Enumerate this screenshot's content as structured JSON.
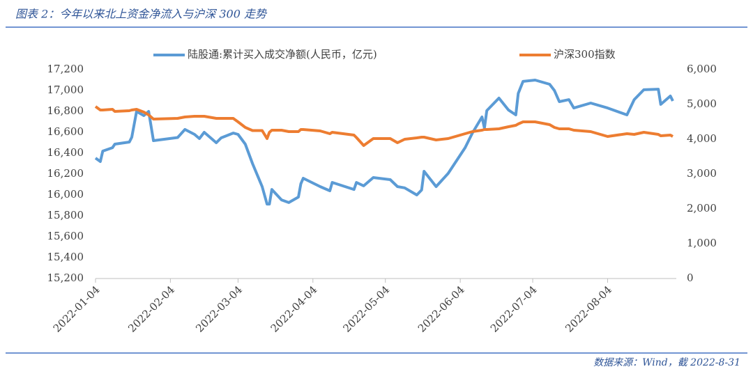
{
  "chart_data": {
    "type": "line",
    "title": "图表 2：今年以来北上资金净流入与沪深 300 走势",
    "source": "数据来源：Wind，截 2022-8-31",
    "legend": "top",
    "x": [
      "2022-01-04",
      "2022-01-06",
      "2022-01-07",
      "2022-01-11",
      "2022-01-12",
      "2022-01-18",
      "2022-01-19",
      "2022-01-21",
      "2022-01-24",
      "2022-01-26",
      "2022-01-28",
      "2022-02-07",
      "2022-02-10",
      "2022-02-14",
      "2022-02-16",
      "2022-02-18",
      "2022-02-23",
      "2022-02-25",
      "2022-03-02",
      "2022-03-04",
      "2022-03-07",
      "2022-03-10",
      "2022-03-14",
      "2022-03-16",
      "2022-03-17",
      "2022-03-18",
      "2022-03-22",
      "2022-03-25",
      "2022-03-29",
      "2022-03-30",
      "2022-03-31",
      "2022-04-07",
      "2022-04-11",
      "2022-04-12",
      "2022-04-21",
      "2022-04-22",
      "2022-04-25",
      "2022-04-29",
      "2022-05-06",
      "2022-05-09",
      "2022-05-12",
      "2022-05-17",
      "2022-05-19",
      "2022-05-20",
      "2022-05-25",
      "2022-05-30",
      "2022-06-06",
      "2022-06-09",
      "2022-06-13",
      "2022-06-14",
      "2022-06-15",
      "2022-06-20",
      "2022-06-24",
      "2022-06-27",
      "2022-06-28",
      "2022-06-30",
      "2022-07-05",
      "2022-07-11",
      "2022-07-13",
      "2022-07-15",
      "2022-07-19",
      "2022-07-21",
      "2022-07-28",
      "2022-08-04",
      "2022-08-12",
      "2022-08-15",
      "2022-08-19",
      "2022-08-25",
      "2022-08-26",
      "2022-08-30",
      "2022-08-31"
    ],
    "series": [
      {
        "name": "陆股通:累计买入成交净额(人民币，亿元)",
        "color": "#5b9bd5",
        "axis": "y",
        "values": [
          16353,
          16320,
          16420,
          16453,
          16487,
          16507,
          16553,
          16800,
          16760,
          16800,
          16520,
          16550,
          16627,
          16580,
          16540,
          16600,
          16500,
          16547,
          16593,
          16580,
          16487,
          16300,
          16080,
          15913,
          15913,
          16053,
          15953,
          15927,
          15980,
          16107,
          16160,
          16080,
          16040,
          16120,
          16053,
          16120,
          16087,
          16167,
          16147,
          16080,
          16068,
          16000,
          16047,
          16227,
          16080,
          16207,
          16453,
          16593,
          16747,
          16640,
          16807,
          16927,
          16813,
          16767,
          16973,
          17087,
          17100,
          17060,
          17000,
          16893,
          16913,
          16833,
          16880,
          16833,
          16767,
          16913,
          17007,
          17013,
          16867,
          16947,
          16900
        ]
      },
      {
        "name": "沪深300指数",
        "color": "#ed7d31",
        "axis": "y2",
        "values": [
          4940,
          4840,
          4840,
          4860,
          4800,
          4820,
          4840,
          4860,
          4780,
          4700,
          4580,
          4600,
          4640,
          4660,
          4660,
          4660,
          4600,
          4600,
          4600,
          4500,
          4340,
          4250,
          4250,
          4020,
          4200,
          4260,
          4260,
          4220,
          4220,
          4280,
          4280,
          4240,
          4160,
          4200,
          4120,
          4050,
          3820,
          4020,
          4020,
          3900,
          4000,
          4040,
          4060,
          4060,
          3980,
          4020,
          4160,
          4220,
          4260,
          4280,
          4280,
          4300,
          4360,
          4400,
          4440,
          4500,
          4500,
          4420,
          4340,
          4300,
          4300,
          4260,
          4220,
          4080,
          4160,
          4140,
          4200,
          4140,
          4100,
          4120,
          4080
        ]
      }
    ],
    "xlim": [
      "2022-01-04",
      "2022-08-31"
    ],
    "xticks": [
      "2022-01-04",
      "2022-02-04",
      "2022-03-04",
      "2022-04-04",
      "2022-05-04",
      "2022-06-04",
      "2022-07-04",
      "2022-08-04"
    ],
    "ylim": [
      15200,
      17200
    ],
    "yticks": [
      {
        "value": 15200,
        "label": "15,200"
      },
      {
        "value": 15400,
        "label": "15,400"
      },
      {
        "value": 15600,
        "label": "15,600"
      },
      {
        "value": 15800,
        "label": "15,800"
      },
      {
        "value": 16000,
        "label": "16,000"
      },
      {
        "value": 16200,
        "label": "16,200"
      },
      {
        "value": 16400,
        "label": "16,400"
      },
      {
        "value": 16600,
        "label": "16,600"
      },
      {
        "value": 16800,
        "label": "16,800"
      },
      {
        "value": 17000,
        "label": "17,000"
      },
      {
        "value": 17200,
        "label": "17,200"
      }
    ],
    "y2lim": [
      0,
      6000
    ],
    "y2ticks": [
      0,
      {
        "value": 1000,
        "label": "1,000"
      },
      {
        "value": 2000,
        "label": "2,000"
      },
      {
        "value": 3000,
        "label": "3,000"
      },
      {
        "value": 4000,
        "label": "4,000"
      },
      {
        "value": 5000,
        "label": "5,000"
      },
      {
        "value": 6000,
        "label": "6,000"
      }
    ],
    "grid": false
  }
}
